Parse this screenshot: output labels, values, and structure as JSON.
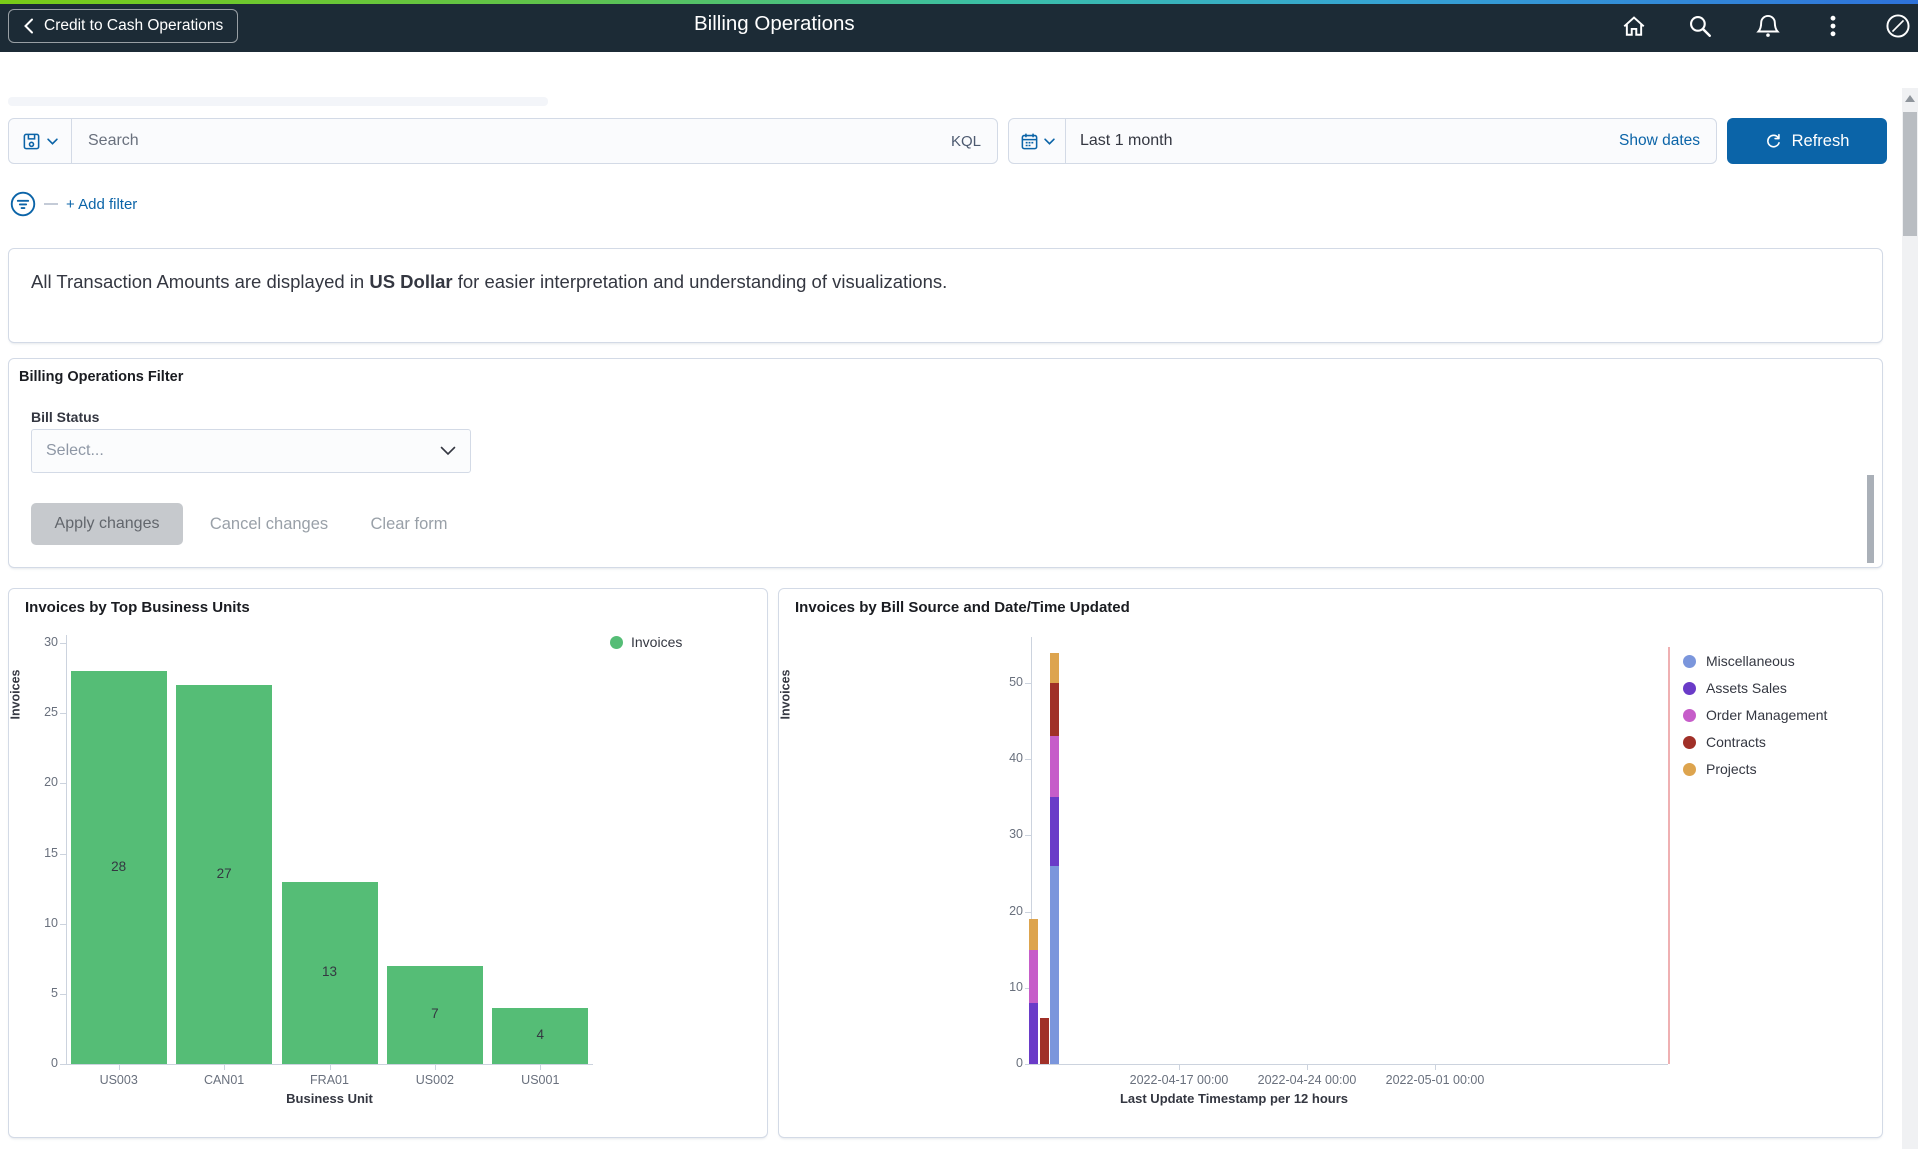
{
  "header": {
    "back_label": "Credit to Cash Operations",
    "title": "Billing Operations",
    "icons": [
      "home",
      "search",
      "notifications",
      "actions-menu",
      "navbar-compass"
    ]
  },
  "toolbar": {
    "search_placeholder": "Search",
    "kql_label": "KQL",
    "date_range": "Last 1 month",
    "show_dates_label": "Show dates",
    "refresh_label": "Refresh",
    "add_filter_label": "+ Add filter"
  },
  "notice": {
    "prefix": "All Transaction Amounts are displayed in ",
    "bold": "US Dollar",
    "suffix": " for easier interpretation and understanding of visualizations."
  },
  "filter_panel": {
    "title": "Billing Operations Filter",
    "field_label": "Bill Status",
    "select_placeholder": "Select...",
    "apply_label": "Apply changes",
    "cancel_label": "Cancel changes",
    "clear_label": "Clear form"
  },
  "colors": {
    "accent_blue": "#0b64a8",
    "link_blue": "#006bb4",
    "header_bg": "#1c2b36",
    "panel_border": "#d3dae6"
  },
  "chart_data": [
    {
      "type": "bar",
      "title": "Invoices by Top Business Units",
      "series_name": "Invoices",
      "categories": [
        "US003",
        "CAN01",
        "FRA01",
        "US002",
        "US001"
      ],
      "values": [
        28,
        27,
        13,
        7,
        4
      ],
      "color": "#55bd76",
      "xlabel": "Business Unit",
      "ylabel": "Invoices",
      "ylim": [
        0,
        30
      ],
      "yticks": [
        0,
        5,
        10,
        15,
        20,
        25,
        30
      ],
      "grid": false,
      "legend_position": "top-right",
      "value_labels": "centered-in-bar"
    },
    {
      "type": "stacked_bar",
      "title": "Invoices by Bill Source and Date/Time Updated",
      "xlabel": "Last Update Timestamp per 12 hours",
      "ylabel": "Invoices",
      "ylim": [
        0,
        55
      ],
      "yticks": [
        0,
        10,
        20,
        30,
        40,
        50
      ],
      "xticks": [
        "2022-04-17 00:00",
        "2022-04-24 00:00",
        "2022-05-01 00:00"
      ],
      "grid": false,
      "legend_position": "right",
      "annotation_line_color": "#efb0b2",
      "series": [
        {
          "name": "Miscellaneous",
          "color": "#7b96dc"
        },
        {
          "name": "Assets Sales",
          "color": "#6a3bc8"
        },
        {
          "name": "Order Management",
          "color": "#c65dc9"
        },
        {
          "name": "Contracts",
          "color": "#a03028"
        },
        {
          "name": "Projects",
          "color": "#dda44e"
        }
      ],
      "bars": [
        {
          "segments": {
            "Assets Sales": 8,
            "Order Management": 7,
            "Projects": 4
          }
        },
        {
          "segments": {
            "Contracts": 6
          }
        },
        {
          "segments": {
            "Miscellaneous": 26,
            "Assets Sales": 9,
            "Order Management": 8,
            "Contracts": 7,
            "Projects": 4
          }
        }
      ]
    }
  ]
}
